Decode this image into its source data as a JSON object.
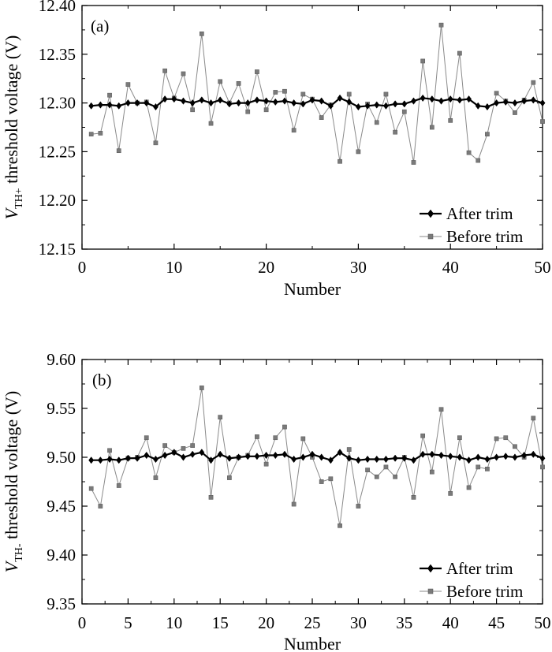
{
  "chart_data": [
    {
      "type": "line",
      "panel_label": "(a)",
      "xlabel": "Number",
      "ylabel_var": "V",
      "ylabel_sub": "TH+",
      "ylabel_rest": " threshold voltage (V)",
      "xlim": [
        0,
        50
      ],
      "ylim": [
        12.15,
        12.4
      ],
      "xticks": [
        0,
        10,
        20,
        30,
        40,
        50
      ],
      "yticks": [
        "12.15",
        "12.20",
        "12.25",
        "12.30",
        "12.35",
        "12.40"
      ],
      "legend_position": "bottom-right",
      "series": [
        {
          "name": "After trim",
          "marker": "diamond",
          "x": [
            1,
            2,
            3,
            4,
            5,
            6,
            7,
            8,
            9,
            10,
            11,
            12,
            13,
            14,
            15,
            16,
            17,
            18,
            19,
            20,
            21,
            22,
            23,
            24,
            25,
            26,
            27,
            28,
            29,
            30,
            31,
            32,
            33,
            34,
            35,
            36,
            37,
            38,
            39,
            40,
            41,
            42,
            43,
            44,
            45,
            46,
            47,
            48,
            49,
            50
          ],
          "values": [
            12.297,
            12.298,
            12.298,
            12.297,
            12.3,
            12.3,
            12.3,
            12.296,
            12.304,
            12.304,
            12.302,
            12.3,
            12.303,
            12.3,
            12.303,
            12.299,
            12.3,
            12.3,
            12.303,
            12.302,
            12.301,
            12.302,
            12.3,
            12.299,
            12.303,
            12.302,
            12.297,
            12.305,
            12.301,
            12.296,
            12.297,
            12.298,
            12.297,
            12.299,
            12.299,
            12.302,
            12.305,
            12.304,
            12.302,
            12.304,
            12.303,
            12.304,
            12.297,
            12.296,
            12.3,
            12.301,
            12.3,
            12.302,
            12.303,
            12.3
          ]
        },
        {
          "name": "Before trim",
          "marker": "square",
          "x": [
            1,
            2,
            3,
            4,
            5,
            6,
            7,
            8,
            9,
            10,
            11,
            12,
            13,
            14,
            15,
            16,
            17,
            18,
            19,
            20,
            21,
            22,
            23,
            24,
            25,
            26,
            27,
            28,
            29,
            30,
            31,
            32,
            33,
            34,
            35,
            36,
            37,
            38,
            39,
            40,
            41,
            42,
            43,
            44,
            45,
            46,
            47,
            48,
            49,
            50
          ],
          "values": [
            12.268,
            12.269,
            12.308,
            12.251,
            12.319,
            12.3,
            12.301,
            12.259,
            12.333,
            12.305,
            12.33,
            12.293,
            12.371,
            12.279,
            12.322,
            12.3,
            12.32,
            12.291,
            12.332,
            12.293,
            12.311,
            12.312,
            12.272,
            12.309,
            12.304,
            12.285,
            12.298,
            12.24,
            12.309,
            12.25,
            12.299,
            12.28,
            12.309,
            12.27,
            12.291,
            12.239,
            12.343,
            12.275,
            12.38,
            12.282,
            12.351,
            12.249,
            12.241,
            12.268,
            12.31,
            12.302,
            12.29,
            12.303,
            12.321,
            12.281
          ]
        }
      ]
    },
    {
      "type": "line",
      "panel_label": "(b)",
      "xlabel": "Number",
      "ylabel_var": "V",
      "ylabel_sub": "TH-",
      "ylabel_rest": " threshold voltage (V)",
      "xlim": [
        0,
        50
      ],
      "ylim": [
        9.35,
        9.6
      ],
      "xticks": [
        0,
        5,
        10,
        15,
        20,
        25,
        30,
        35,
        40,
        45,
        50
      ],
      "yticks": [
        "9.35",
        "9.40",
        "9.45",
        "9.50",
        "9.55",
        "9.60"
      ],
      "legend_position": "bottom-right",
      "series": [
        {
          "name": "After trim",
          "marker": "diamond",
          "x": [
            1,
            2,
            3,
            4,
            5,
            6,
            7,
            8,
            9,
            10,
            11,
            12,
            13,
            14,
            15,
            16,
            17,
            18,
            19,
            20,
            21,
            22,
            23,
            24,
            25,
            26,
            27,
            28,
            29,
            30,
            31,
            32,
            33,
            34,
            35,
            36,
            37,
            38,
            39,
            40,
            41,
            42,
            43,
            44,
            45,
            46,
            47,
            48,
            49,
            50
          ],
          "values": [
            9.497,
            9.497,
            9.498,
            9.497,
            9.499,
            9.499,
            9.502,
            9.498,
            9.502,
            9.505,
            9.5,
            9.503,
            9.505,
            9.497,
            9.503,
            9.499,
            9.5,
            9.501,
            9.501,
            9.502,
            9.502,
            9.503,
            9.498,
            9.5,
            9.503,
            9.5,
            9.497,
            9.505,
            9.499,
            9.497,
            9.498,
            9.498,
            9.498,
            9.499,
            9.499,
            9.497,
            9.503,
            9.503,
            9.502,
            9.501,
            9.5,
            9.497,
            9.5,
            9.498,
            9.5,
            9.501,
            9.5,
            9.502,
            9.503,
            9.499
          ]
        },
        {
          "name": "Before trim",
          "marker": "square",
          "x": [
            1,
            2,
            3,
            4,
            5,
            6,
            7,
            8,
            9,
            10,
            11,
            12,
            13,
            14,
            15,
            16,
            17,
            18,
            19,
            20,
            21,
            22,
            23,
            24,
            25,
            26,
            27,
            28,
            29,
            30,
            31,
            32,
            33,
            34,
            35,
            36,
            37,
            38,
            39,
            40,
            41,
            42,
            43,
            44,
            45,
            46,
            47,
            48,
            49,
            50
          ],
          "values": [
            9.468,
            9.45,
            9.507,
            9.471,
            9.499,
            9.5,
            9.52,
            9.479,
            9.512,
            9.505,
            9.509,
            9.512,
            9.571,
            9.459,
            9.541,
            9.479,
            9.5,
            9.502,
            9.521,
            9.493,
            9.52,
            9.531,
            9.452,
            9.519,
            9.5,
            9.475,
            9.478,
            9.43,
            9.508,
            9.45,
            9.487,
            9.48,
            9.49,
            9.48,
            9.5,
            9.459,
            9.522,
            9.485,
            9.549,
            9.463,
            9.52,
            9.469,
            9.49,
            9.488,
            9.519,
            9.52,
            9.511,
            9.5,
            9.54,
            9.49
          ]
        }
      ]
    }
  ]
}
